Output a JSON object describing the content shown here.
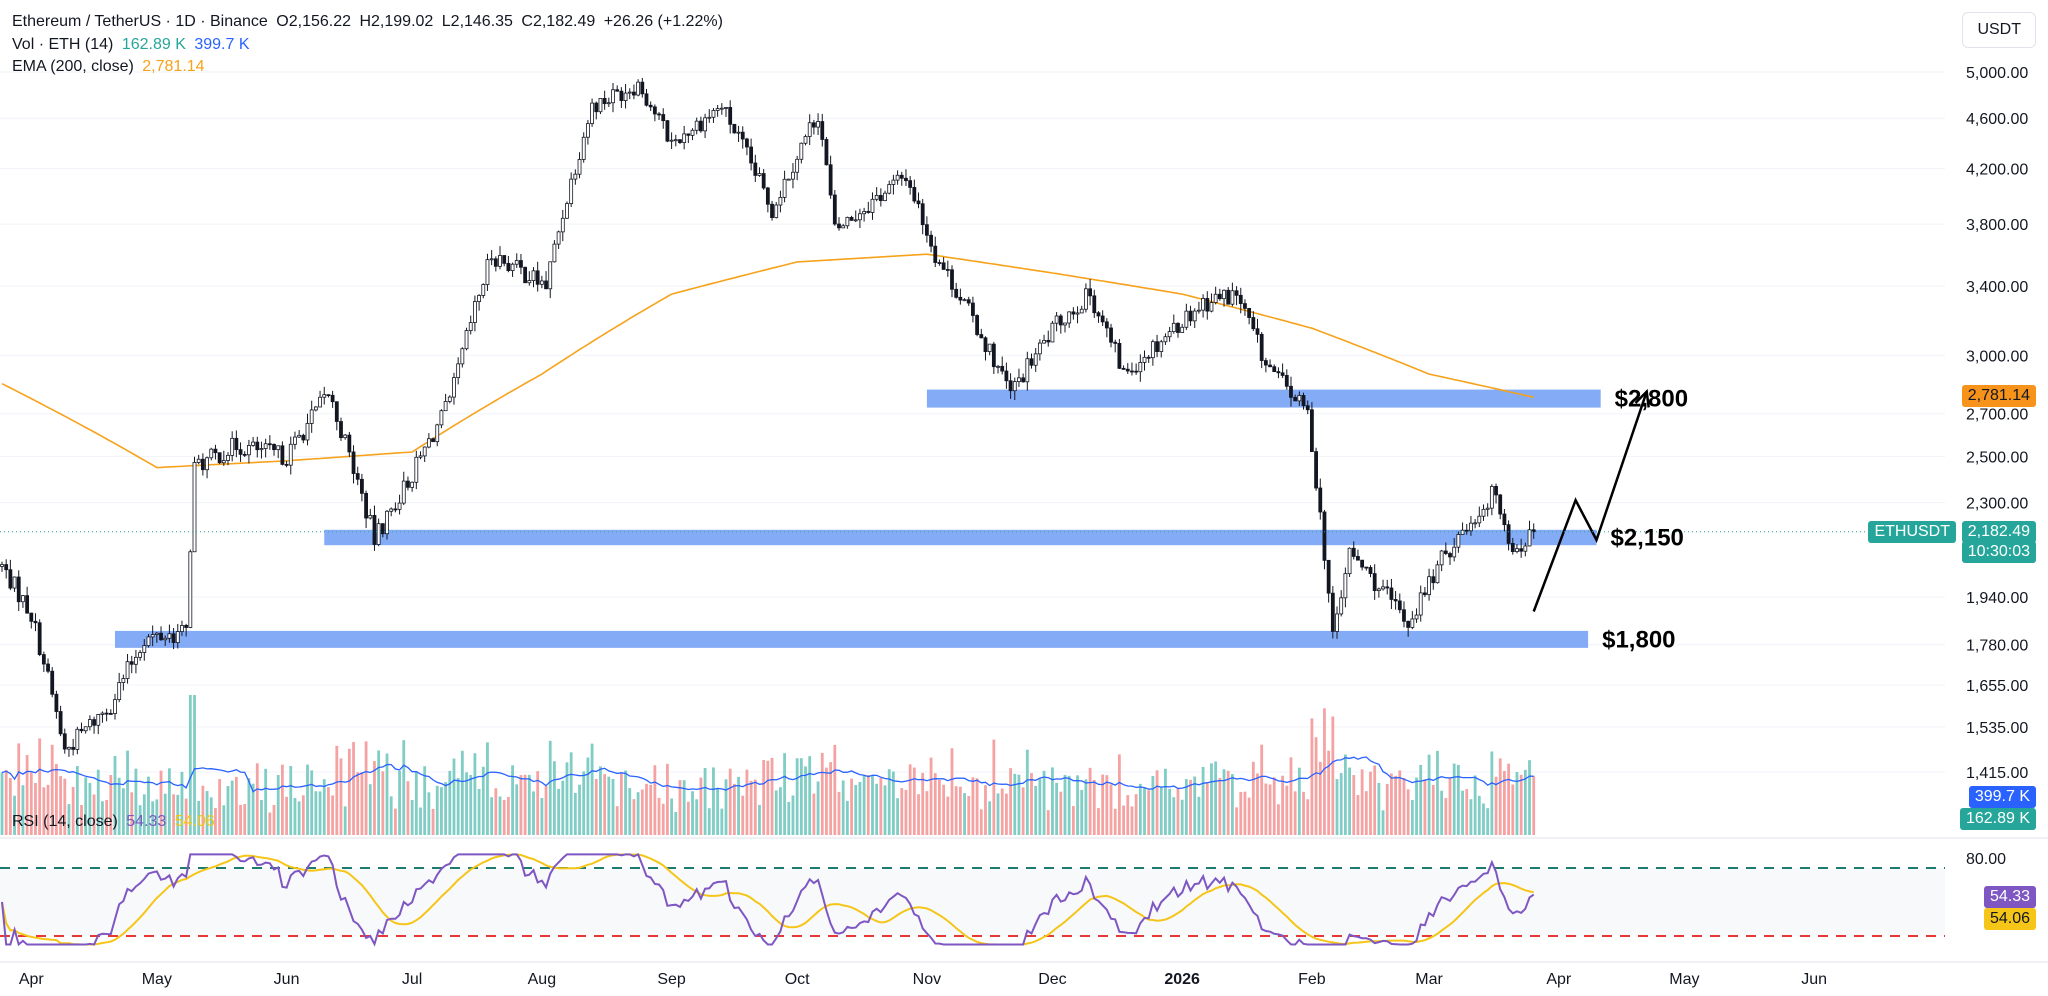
{
  "header": {
    "symbol": "Ethereum / TetherUS · 1D · Binance",
    "open": "O2,156.22",
    "high": "H2,199.02",
    "low": "L2,146.35",
    "close": "C2,182.49",
    "change": "+26.26 (+1.22%)",
    "vol_label": "Vol · ETH (14)",
    "vol_a": "162.89 K",
    "vol_b": "399.7 K",
    "ema_label": "EMA (200, close)",
    "ema_value": "2,781.14"
  },
  "currency_button": "USDT",
  "rsi": {
    "label": "RSI (14, close)",
    "value": "54.33",
    "ma_value": "54.06",
    "upper": "80.00",
    "upper_level": 70,
    "lower_level": 30
  },
  "badges": {
    "ema": "2,781.14",
    "symbol": "ETHUSDT",
    "price": "2,182.49",
    "countdown": "10:30:03",
    "vol_ma": "399.7 K",
    "vol": "162.89 K",
    "rsi": "54.33",
    "rsi_ma": "54.06"
  },
  "colors": {
    "up": "#26a69a",
    "down": "#ef5350",
    "ema": "#f7a21b",
    "zone": "#6e9cf5",
    "vol_ma": "#2962ff",
    "rsi": "#7e57c2",
    "rsi_ma": "#f5c518"
  },
  "chart_data": {
    "type": "candlestick",
    "title": "Ethereum / TetherUS · 1D · Binance",
    "y_ticks": [
      "5,000.00",
      "4,600.00",
      "4,200.00",
      "3,800.00",
      "3,400.00",
      "3,000.00",
      "2,700.00",
      "2,500.00",
      "2,300.00",
      "1,940.00",
      "1,780.00",
      "1,655.00",
      "1,535.00",
      "1,415.00"
    ],
    "y_scale": "log",
    "x_ticks": [
      "Apr",
      "May",
      "Jun",
      "Jul",
      "Aug",
      "Sep",
      "Oct",
      "Nov",
      "Dec",
      "2026",
      "Feb",
      "Mar",
      "Apr",
      "May",
      "Jun"
    ],
    "price_path": [
      [
        "2025-03-25",
        2050
      ],
      [
        "2025-04-01",
        1880
      ],
      [
        "2025-04-09",
        1470
      ],
      [
        "2025-04-20",
        1600
      ],
      [
        "2025-04-28",
        1800
      ],
      [
        "2025-05-08",
        1820
      ],
      [
        "2025-05-10",
        2450
      ],
      [
        "2025-05-20",
        2550
      ],
      [
        "2025-06-01",
        2500
      ],
      [
        "2025-06-11",
        2800
      ],
      [
        "2025-06-22",
        2150
      ],
      [
        "2025-07-01",
        2420
      ],
      [
        "2025-07-10",
        2750
      ],
      [
        "2025-07-20",
        3600
      ],
      [
        "2025-08-02",
        3400
      ],
      [
        "2025-08-13",
        4700
      ],
      [
        "2025-08-24",
        4900
      ],
      [
        "2025-09-01",
        4400
      ],
      [
        "2025-09-13",
        4700
      ],
      [
        "2025-09-25",
        3900
      ],
      [
        "2025-10-06",
        4650
      ],
      [
        "2025-10-10",
        3750
      ],
      [
        "2025-10-27",
        4150
      ],
      [
        "2025-11-03",
        3600
      ],
      [
        "2025-11-21",
        2800
      ],
      [
        "2025-12-03",
        3200
      ],
      [
        "2025-12-10",
        3350
      ],
      [
        "2025-12-18",
        2900
      ],
      [
        "2026-01-06",
        3300
      ],
      [
        "2026-01-14",
        3350
      ],
      [
        "2026-01-21",
        2950
      ],
      [
        "2026-01-31",
        2700
      ],
      [
        "2026-02-06",
        1800
      ],
      [
        "2026-02-10",
        2100
      ],
      [
        "2026-02-24",
        1850
      ],
      [
        "2026-03-05",
        2100
      ],
      [
        "2026-03-17",
        2350
      ],
      [
        "2026-03-21",
        2100
      ],
      [
        "2026-03-26",
        2182.49
      ]
    ],
    "ema200": [
      [
        "2025-03-25",
        2850
      ],
      [
        "2025-05-01",
        2450
      ],
      [
        "2025-06-01",
        2480
      ],
      [
        "2025-07-01",
        2520
      ],
      [
        "2025-08-01",
        2900
      ],
      [
        "2025-09-01",
        3350
      ],
      [
        "2025-10-01",
        3550
      ],
      [
        "2025-11-01",
        3600
      ],
      [
        "2025-12-01",
        3480
      ],
      [
        "2026-01-01",
        3350
      ],
      [
        "2026-02-01",
        3150
      ],
      [
        "2026-03-01",
        2900
      ],
      [
        "2026-03-26",
        2781.14
      ]
    ],
    "zones": [
      {
        "label": "$2,800",
        "low": 2730,
        "high": 2820,
        "from": "2025-11-01",
        "to": "2026-04-11"
      },
      {
        "label": "$2,150",
        "low": 2130,
        "high": 2190,
        "from": "2025-06-10",
        "to": "2026-04-10"
      },
      {
        "label": "$1,800",
        "low": 1770,
        "high": 1825,
        "from": "2025-04-21",
        "to": "2026-04-08"
      }
    ],
    "projection": [
      [
        "2026-03-26",
        1890
      ],
      [
        "2026-04-05",
        2310
      ],
      [
        "2026-04-10",
        2150
      ],
      [
        "2026-04-22",
        2810
      ]
    ],
    "last_price": 2182.49,
    "ema_last": 2781.14,
    "rsi_last": 54.33,
    "rsi_ma_last": 54.06
  }
}
